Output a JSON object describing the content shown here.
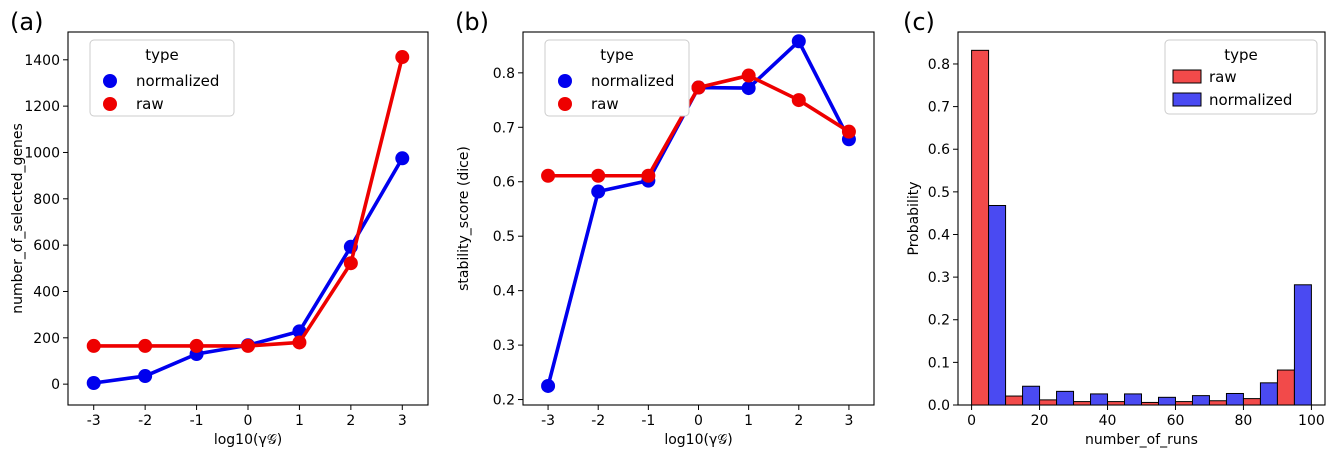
{
  "colors": {
    "normalized": "#0000ee",
    "raw": "#ee0000",
    "raw_hist": "#f24a4a",
    "normalized_hist": "#4a4af2"
  },
  "chart_data": [
    {
      "panel": "(a)",
      "type": "line",
      "xlabel": "log10(γ𝒢)",
      "ylabel": "number_of_selected_genes",
      "x": [
        -3,
        -2,
        -1,
        0,
        1,
        2,
        3
      ],
      "xticks": [
        "-3",
        "-2",
        "-1",
        "0",
        "1",
        "2",
        "3"
      ],
      "ylim": [
        -90,
        1520
      ],
      "yticks": [
        0,
        200,
        400,
        600,
        800,
        1000,
        1200,
        1400
      ],
      "legend": {
        "title": "type",
        "placement": "top-left"
      },
      "series": [
        {
          "name": "normalized",
          "color": "#0000ee",
          "values": [
            5,
            35,
            130,
            168,
            228,
            593,
            975
          ]
        },
        {
          "name": "raw",
          "color": "#ee0000",
          "values": [
            165,
            165,
            165,
            165,
            180,
            522,
            1412
          ],
          "error_top": [
            null,
            null,
            null,
            null,
            null,
            null,
            1440
          ]
        }
      ]
    },
    {
      "panel": "(b)",
      "type": "line",
      "xlabel": "log10(γ𝒢)",
      "ylabel": "stability_score (dice)",
      "x": [
        -3,
        -2,
        -1,
        0,
        1,
        2,
        3
      ],
      "xticks": [
        "-3",
        "-2",
        "-1",
        "0",
        "1",
        "2",
        "3"
      ],
      "ylim": [
        0.19,
        0.875
      ],
      "yticks": [
        "0.2",
        "0.3",
        "0.4",
        "0.5",
        "0.6",
        "0.7",
        "0.8"
      ],
      "legend": {
        "title": "type",
        "placement": "top-left"
      },
      "series": [
        {
          "name": "normalized",
          "color": "#0000ee",
          "values": [
            0.225,
            0.582,
            0.602,
            0.773,
            0.772,
            0.858,
            0.678
          ]
        },
        {
          "name": "raw",
          "color": "#ee0000",
          "values": [
            0.611,
            0.611,
            0.611,
            0.773,
            0.795,
            0.75,
            0.692
          ]
        }
      ]
    },
    {
      "panel": "(c)",
      "type": "bar",
      "xlabel": "number_of_runs",
      "ylabel": "Probability",
      "xlim": [
        -4,
        104
      ],
      "xticks": [
        0,
        20,
        40,
        60,
        80,
        100
      ],
      "ylim": [
        0,
        0.875
      ],
      "yticks": [
        "0.0",
        "0.1",
        "0.2",
        "0.3",
        "0.4",
        "0.5",
        "0.6",
        "0.7",
        "0.8"
      ],
      "bin_starts": [
        0,
        10,
        20,
        30,
        40,
        50,
        60,
        70,
        80,
        90
      ],
      "bin_width": 10,
      "legend": {
        "title": "type",
        "placement": "top-right"
      },
      "series": [
        {
          "name": "raw",
          "color": "#f24a4a",
          "values": [
            0.832,
            0.021,
            0.012,
            0.008,
            0.008,
            0.006,
            0.008,
            0.01,
            0.015,
            0.082
          ]
        },
        {
          "name": "normalized",
          "color": "#4a4af2",
          "values": [
            0.468,
            0.044,
            0.032,
            0.026,
            0.026,
            0.018,
            0.022,
            0.027,
            0.052,
            0.282
          ]
        }
      ]
    }
  ]
}
